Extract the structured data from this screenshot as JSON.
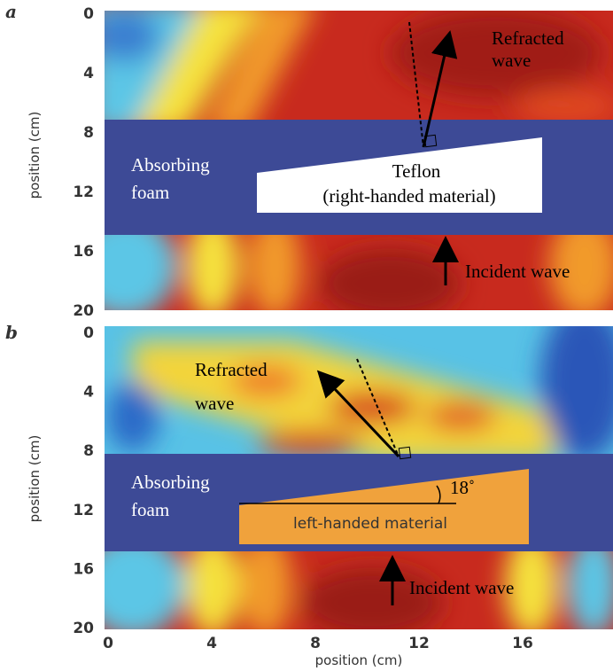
{
  "panels": [
    {
      "label": "a",
      "y_axis_label": "position (cm)",
      "y_ticks": [
        0,
        4,
        8,
        12,
        16,
        20
      ],
      "texts": [
        "Refracted",
        "wave",
        "Absorbing",
        "foam",
        "Teflon",
        "(right-handed material)",
        "Incident wave"
      ]
    },
    {
      "label": "b",
      "y_axis_label": "position (cm)",
      "y_ticks": [
        0,
        4,
        8,
        12,
        16,
        20
      ],
      "texts": [
        "Refracted",
        "wave",
        "Absorbing",
        "foam",
        "18˚",
        "left-handed material",
        "Incident wave"
      ]
    }
  ],
  "x_axis": {
    "label": "position (cm)",
    "ticks": [
      0,
      4,
      8,
      12,
      16
    ]
  }
}
